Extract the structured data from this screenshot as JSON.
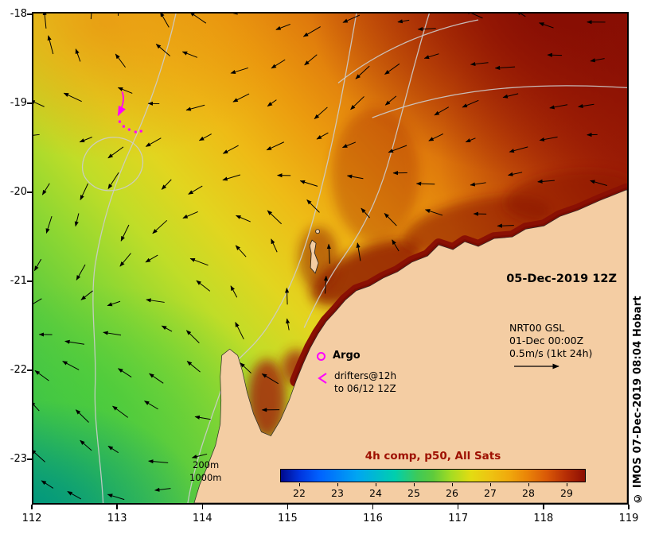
{
  "palette": {
    "land": "#f4cda3",
    "coastal_warm_water": "#8a1004",
    "magenta_overlay": "#ff00ff",
    "colorbar_title_color": "#9e1000",
    "contour_gray": "#cccccc"
  },
  "axes": {
    "x_ticks": [
      "112",
      "113",
      "114",
      "115",
      "116",
      "117",
      "118",
      "119"
    ],
    "y_ticks": [
      "-18",
      "-19",
      "-20",
      "-21",
      "-22",
      "-23"
    ]
  },
  "annotations": {
    "date_label": "05-Dec-2019 12Z",
    "model": {
      "name": "NRT00 GSL",
      "run": "01-Dec 00:00Z",
      "vector_scale": "0.5m/s (1kt 24h)"
    },
    "argo_label": "Argo",
    "drifters_line1": "drifters@12h",
    "drifters_line2": "to 06/12 12Z",
    "depth_200": "200m",
    "depth_1000": "1000m"
  },
  "colorbar": {
    "title": "4h comp, p50, All Sats",
    "ticks": [
      "22",
      "23",
      "24",
      "25",
      "26",
      "27",
      "28",
      "29"
    ]
  },
  "credit": "© IMOS 07-Dec-2019 08:04 Hobart",
  "chart_data": {
    "type": "heatmap",
    "title": "4h comp, p50, All Sats",
    "field": "sea_surface_temperature",
    "datetime": "05-Dec-2019 12Z",
    "x_axis": {
      "ticks": [
        112,
        113,
        114,
        115,
        116,
        117,
        118,
        119
      ],
      "range": [
        112,
        119
      ],
      "units": "degrees_east"
    },
    "y_axis": {
      "ticks": [
        -18,
        -19,
        -20,
        -21,
        -22,
        -23
      ],
      "range": [
        -23.5,
        -18
      ],
      "units": "degrees_north"
    },
    "colorbar": {
      "tick_values": [
        22,
        23,
        24,
        25,
        26,
        27,
        28,
        29
      ],
      "value_range": [
        21.5,
        29.5
      ],
      "units": "degC",
      "stops": [
        "#000a8c",
        "#0061ff",
        "#00a5f2",
        "#00cfae",
        "#5ecb3c",
        "#e3dc12",
        "#f0a90c",
        "#ea8408",
        "#8c0f03"
      ]
    },
    "sst_sample_grid": {
      "lons": [
        112,
        113,
        114,
        115,
        116,
        117,
        118,
        119
      ],
      "lats": [
        -18,
        -19,
        -20,
        -21,
        -22,
        -23
      ],
      "values_degC": [
        [
          27.3,
          27.6,
          27.9,
          28.1,
          28.4,
          28.8,
          29.0,
          29.2
        ],
        [
          26.8,
          27.2,
          27.6,
          28.0,
          28.4,
          28.8,
          29.1,
          29.3
        ],
        [
          25.8,
          26.6,
          27.2,
          27.7,
          28.4,
          28.9,
          29.2,
          null
        ],
        [
          24.6,
          25.2,
          25.9,
          27.4,
          28.9,
          29.0,
          null,
          null
        ],
        [
          23.6,
          24.0,
          24.5,
          null,
          null,
          null,
          null,
          null
        ],
        [
          22.8,
          23.2,
          24.0,
          null,
          null,
          null,
          null,
          null
        ]
      ],
      "note": "approximate values read from colour field; null = land"
    },
    "overlays": [
      {
        "name": "surface_current_vectors",
        "style": "black arrows",
        "scale": "0.5m/s (1kt 24h)",
        "model": "NRT00 GSL",
        "model_run": "01-Dec 00:00Z"
      },
      {
        "name": "bathymetry_contours",
        "depths_m": [
          200,
          1000
        ],
        "style": "gray lines"
      },
      {
        "name": "argo_float_position",
        "style": "magenta circle"
      },
      {
        "name": "drifter_track",
        "label": "drifters@12h to 06/12 12Z",
        "style": "magenta arrow and dots"
      }
    ]
  }
}
